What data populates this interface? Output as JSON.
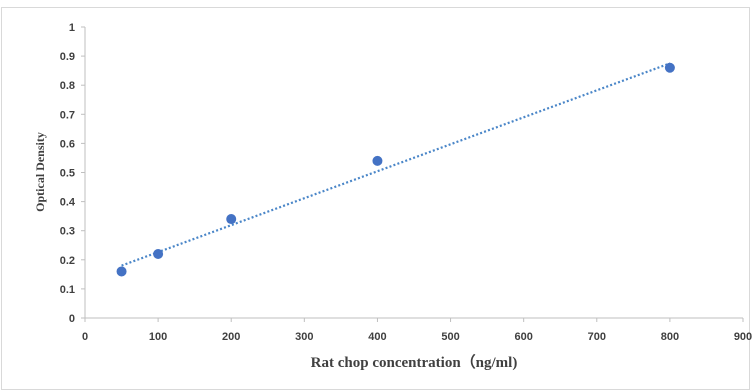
{
  "chart_data": {
    "type": "scatter",
    "title": "",
    "xlabel": "Rat chop concentration（ng/ml)",
    "ylabel": "Optical Density",
    "xlim": [
      0,
      900
    ],
    "ylim": [
      0,
      1
    ],
    "x_ticks": [
      0,
      100,
      200,
      300,
      400,
      500,
      600,
      700,
      800,
      900
    ],
    "y_ticks": [
      0,
      0.1,
      0.2,
      0.3,
      0.4,
      0.5,
      0.6,
      0.7,
      0.8,
      0.9,
      1
    ],
    "grid": false,
    "legend": "none",
    "series": [
      {
        "x": [
          50,
          100,
          200,
          400,
          800
        ],
        "y": [
          0.16,
          0.22,
          0.34,
          0.54,
          0.86
        ],
        "marker_color": "#4472c4"
      }
    ],
    "trendline": {
      "style": "dotted",
      "color": "#4a86c8",
      "x": [
        50,
        800
      ],
      "y": [
        0.18,
        0.875
      ]
    }
  }
}
